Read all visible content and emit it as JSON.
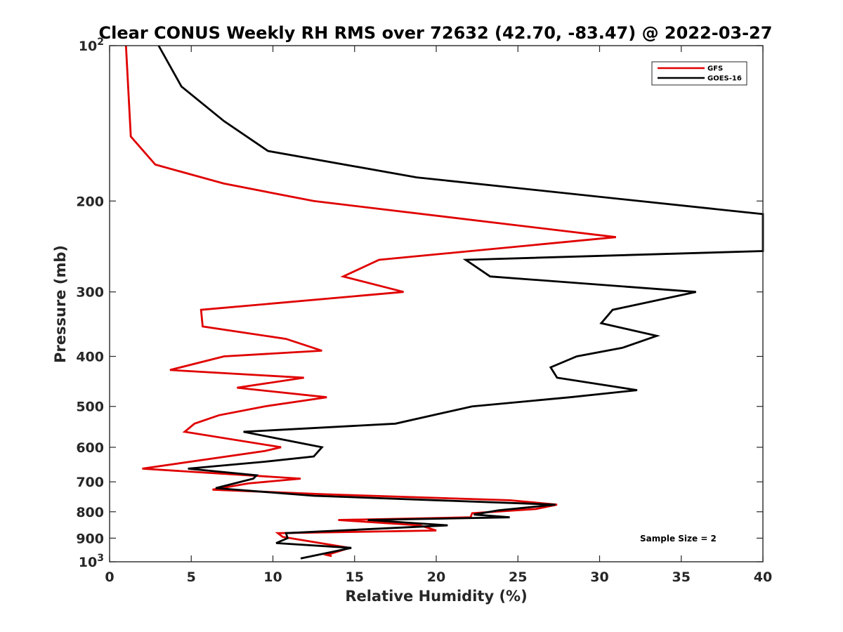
{
  "chart_data": {
    "type": "line",
    "title": "Clear CONUS Weekly RH RMS over 72632 (42.70, -83.47) @ 2022-03-27",
    "xlabel": "Relative Humidity (%)",
    "ylabel": "Pressure (mb)",
    "xlim": [
      0,
      40
    ],
    "ylim": [
      100,
      1000
    ],
    "y_scale": "log",
    "y_reversed": true,
    "grid": false,
    "legend_position": "top-right",
    "x_ticks": [
      "0",
      "5",
      "10",
      "15",
      "20",
      "25",
      "30",
      "35",
      "40"
    ],
    "x_tick_values": [
      0,
      5,
      10,
      15,
      20,
      25,
      30,
      35,
      40
    ],
    "y_ticks": [
      {
        "value": 100,
        "base": "10",
        "exp": "2"
      },
      {
        "value": 200,
        "label": "200"
      },
      {
        "value": 300,
        "label": "300"
      },
      {
        "value": 400,
        "label": "400"
      },
      {
        "value": 500,
        "label": "500"
      },
      {
        "value": 600,
        "label": "600"
      },
      {
        "value": 700,
        "label": "700"
      },
      {
        "value": 800,
        "label": "800"
      },
      {
        "value": 900,
        "label": "900"
      },
      {
        "value": 1000,
        "base": "10",
        "exp": "3"
      }
    ],
    "series": [
      {
        "name": "GFS",
        "color": "#e00000",
        "points": [
          [
            1.0,
            100
          ],
          [
            1.3,
            150
          ],
          [
            2.8,
            170
          ],
          [
            7.0,
            185
          ],
          [
            12.5,
            200
          ],
          [
            31.0,
            235
          ],
          [
            16.5,
            260
          ],
          [
            14.3,
            280
          ],
          [
            18.0,
            300
          ],
          [
            5.6,
            325
          ],
          [
            5.7,
            350
          ],
          [
            10.8,
            370
          ],
          [
            13.0,
            390
          ],
          [
            7.0,
            400
          ],
          [
            3.7,
            425
          ],
          [
            11.9,
            440
          ],
          [
            7.8,
            460
          ],
          [
            13.3,
            480
          ],
          [
            9.5,
            500
          ],
          [
            6.7,
            520
          ],
          [
            5.2,
            540
          ],
          [
            4.6,
            560
          ],
          [
            10.5,
            600
          ],
          [
            9.5,
            610
          ],
          [
            2.0,
            660
          ],
          [
            11.7,
            690
          ],
          [
            8.5,
            705
          ],
          [
            6.3,
            725
          ],
          [
            13.2,
            740
          ],
          [
            24.5,
            760
          ],
          [
            27.4,
            775
          ],
          [
            26.1,
            790
          ],
          [
            22.2,
            805
          ],
          [
            22.1,
            820
          ],
          [
            14.0,
            830
          ],
          [
            19.0,
            850
          ],
          [
            20.0,
            870
          ],
          [
            10.3,
            880
          ],
          [
            10.6,
            895
          ],
          [
            14.7,
            940
          ],
          [
            13.3,
            970
          ],
          [
            13.6,
            975
          ]
        ]
      },
      {
        "name": "GOES-16",
        "color": "#000000",
        "points": [
          [
            3.0,
            100
          ],
          [
            4.4,
            120
          ],
          [
            7.0,
            140
          ],
          [
            9.7,
            160
          ],
          [
            18.8,
            180
          ],
          [
            40.0,
            212
          ],
          [
            40.0,
            250
          ],
          [
            21.8,
            260
          ],
          [
            23.3,
            280
          ],
          [
            35.9,
            300
          ],
          [
            30.8,
            325
          ],
          [
            30.1,
            345
          ],
          [
            33.5,
            365
          ],
          [
            31.4,
            385
          ],
          [
            28.6,
            400
          ],
          [
            27.0,
            420
          ],
          [
            27.4,
            440
          ],
          [
            32.3,
            465
          ],
          [
            28.2,
            480
          ],
          [
            22.2,
            500
          ],
          [
            17.5,
            540
          ],
          [
            8.2,
            560
          ],
          [
            13.0,
            600
          ],
          [
            12.5,
            625
          ],
          [
            9.5,
            640
          ],
          [
            4.8,
            660
          ],
          [
            9.0,
            680
          ],
          [
            8.8,
            690
          ],
          [
            6.5,
            720
          ],
          [
            12.5,
            745
          ],
          [
            27.3,
            775
          ],
          [
            23.8,
            795
          ],
          [
            22.3,
            810
          ],
          [
            24.5,
            820
          ],
          [
            15.8,
            830
          ],
          [
            20.7,
            850
          ],
          [
            10.8,
            880
          ],
          [
            10.9,
            900
          ],
          [
            10.2,
            920
          ],
          [
            14.8,
            940
          ],
          [
            11.7,
            985
          ]
        ]
      }
    ],
    "annotations": [
      "Sample Size = 2"
    ]
  }
}
